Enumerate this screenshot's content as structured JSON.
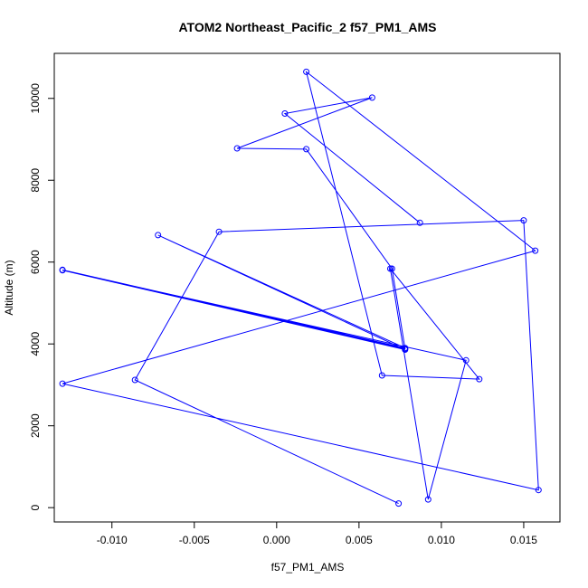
{
  "chart_data": {
    "type": "line",
    "title": "ATOM2 Northeast_Pacific_2 f57_PM1_AMS",
    "xlabel": "f57_PM1_AMS",
    "ylabel": "Altitude (m)",
    "xlim": [
      -0.0135,
      0.0172
    ],
    "ylim": [
      -350,
      11100
    ],
    "x_ticks": [
      -0.01,
      -0.005,
      0.0,
      0.005,
      0.01,
      0.015
    ],
    "x_tick_labels": [
      "-0.010",
      "-0.005",
      "0.000",
      "0.005",
      "0.010",
      "0.015"
    ],
    "y_ticks": [
      0,
      2000,
      4000,
      6000,
      8000,
      10000
    ],
    "y_tick_labels": [
      "0",
      "2000",
      "4000",
      "6000",
      "8000",
      "10000"
    ],
    "grid": false,
    "series": [
      {
        "color": "#0000ff",
        "marker": "open-circle",
        "points": [
          {
            "x": 0.0074,
            "y": 100
          },
          {
            "x": -0.0086,
            "y": 3120
          },
          {
            "x": -0.0035,
            "y": 6740
          },
          {
            "x": 0.015,
            "y": 7020
          },
          {
            "x": 0.0159,
            "y": 430
          },
          {
            "x": -0.013,
            "y": 3030
          },
          {
            "x": 0.0157,
            "y": 6280
          },
          {
            "x": 0.0018,
            "y": 10650
          },
          {
            "x": 0.0064,
            "y": 3230
          },
          {
            "x": 0.0123,
            "y": 3140
          },
          {
            "x": 0.0069,
            "y": 5840
          },
          {
            "x": 0.0092,
            "y": 200
          },
          {
            "x": 0.0115,
            "y": 3600
          },
          {
            "x": -0.013,
            "y": 5800
          },
          {
            "x": 0.0078,
            "y": 3860
          },
          {
            "x": -0.0072,
            "y": 6660
          },
          {
            "x": 0.0078,
            "y": 3900
          },
          {
            "x": -0.013,
            "y": 5810
          },
          {
            "x": 0.0078,
            "y": 3880
          },
          {
            "x": 0.007,
            "y": 5840
          },
          {
            "x": 0.0018,
            "y": 8760
          },
          {
            "x": -0.0024,
            "y": 8780
          },
          {
            "x": 0.0058,
            "y": 10020
          },
          {
            "x": 0.0005,
            "y": 9630
          },
          {
            "x": 0.0087,
            "y": 6960
          }
        ]
      }
    ]
  }
}
